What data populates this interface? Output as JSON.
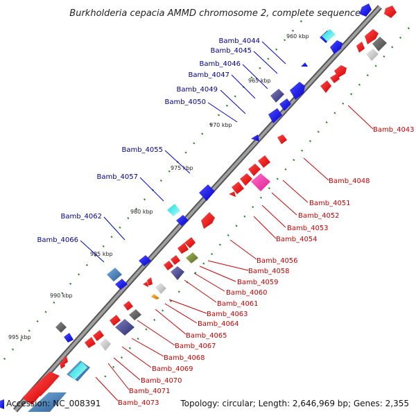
{
  "title": "Burkholderia cepacia AMMD chromosome 2, complete sequence",
  "footer": {
    "accession": "Accession: NC_008391",
    "topology": "Topology: circular; Length: 2,646,969 bp; Genes: 2,355"
  },
  "colors": {
    "forward_label": "#00008b",
    "reverse_label": "#cc0000",
    "backbone": "#808080",
    "tick_dots": "#2a8a2a"
  },
  "ticks": [
    "960 kbp",
    "965 kbp",
    "970 kbp",
    "975 kbp",
    "980 kbp",
    "985 kbp",
    "990 kbp",
    "995 kbp"
  ],
  "forward_labels": [
    "Bamb_4044",
    "Bamb_4045",
    "Bamb_4046",
    "Bamb_4047",
    "Bamb_4049",
    "Bamb_4050",
    "Bamb_4055",
    "Bamb_4057",
    "Bamb_4062",
    "Bamb_4066"
  ],
  "reverse_labels": [
    "Bamb_4043",
    "Bamb_4048",
    "Bamb_4051",
    "Bamb_4052",
    "Bamb_4053",
    "Bamb_4054",
    "Bamb_4056",
    "Bamb_4058",
    "Bamb_4059",
    "Bamb_4060",
    "Bamb_4061",
    "Bamb_4063",
    "Bamb_4064",
    "Bamb_4065",
    "Bamb_4067",
    "Bamb_4068",
    "Bamb_4069",
    "Bamb_4070",
    "Bamb_4071",
    "Bamb_4073"
  ]
}
